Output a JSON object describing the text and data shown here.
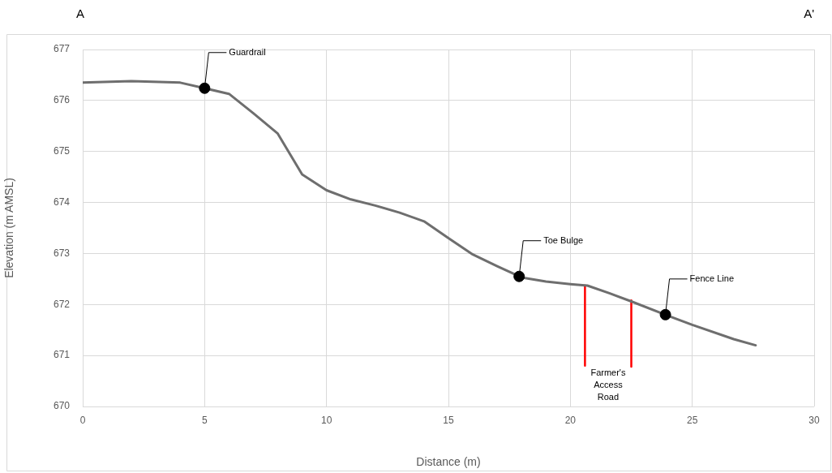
{
  "chart_data": {
    "type": "line",
    "xlabel": "Distance (m)",
    "ylabel": "Elevation (m AMSL)",
    "xlim": [
      0,
      30
    ],
    "xticks": [
      0,
      5,
      10,
      15,
      20,
      25,
      30
    ],
    "ylim": [
      670,
      677
    ],
    "yticks": [
      670,
      671,
      672,
      673,
      674,
      675,
      676,
      677
    ],
    "grid": true,
    "legend": false,
    "series": [
      {
        "color": "#6e6e6e",
        "marker": "none",
        "x": [
          0,
          2,
          4,
          5,
          6,
          7,
          8,
          9,
          10,
          11,
          12,
          13,
          14,
          15,
          16,
          17,
          18,
          19,
          20,
          20.7,
          21.6,
          22.5,
          24,
          25,
          26.7,
          27.6
        ],
        "values": [
          676.35,
          676.38,
          676.35,
          676.24,
          676.13,
          675.75,
          675.35,
          674.55,
          674.24,
          674.06,
          673.94,
          673.8,
          673.63,
          673.3,
          672.98,
          672.75,
          672.53,
          672.45,
          672.4,
          672.37,
          672.22,
          672.06,
          671.78,
          671.6,
          671.32,
          671.2
        ]
      },
      {
        "type": "scatter",
        "color": "#000000",
        "marker": "circle",
        "x": [
          5,
          17.9,
          23.9
        ],
        "values": [
          676.24,
          672.55,
          671.8
        ]
      },
      {
        "color": "#ff0000",
        "marker": "none",
        "x": [
          20.6,
          20.6
        ],
        "values": [
          672.37,
          670.8
        ]
      },
      {
        "color": "#ff0000",
        "marker": "none",
        "x": [
          22.5,
          22.5
        ],
        "values": [
          672.08,
          670.78
        ]
      }
    ],
    "annotations": [
      "A",
      "A'",
      {
        "text": "Guardrail",
        "x": 5,
        "y": 676.24
      },
      {
        "text": "Toe Bulge",
        "x": 17.9,
        "y": 672.55
      },
      {
        "text": "Fence Line",
        "x": 23.9,
        "y": 671.8
      },
      "Farmer's Access Road"
    ]
  }
}
